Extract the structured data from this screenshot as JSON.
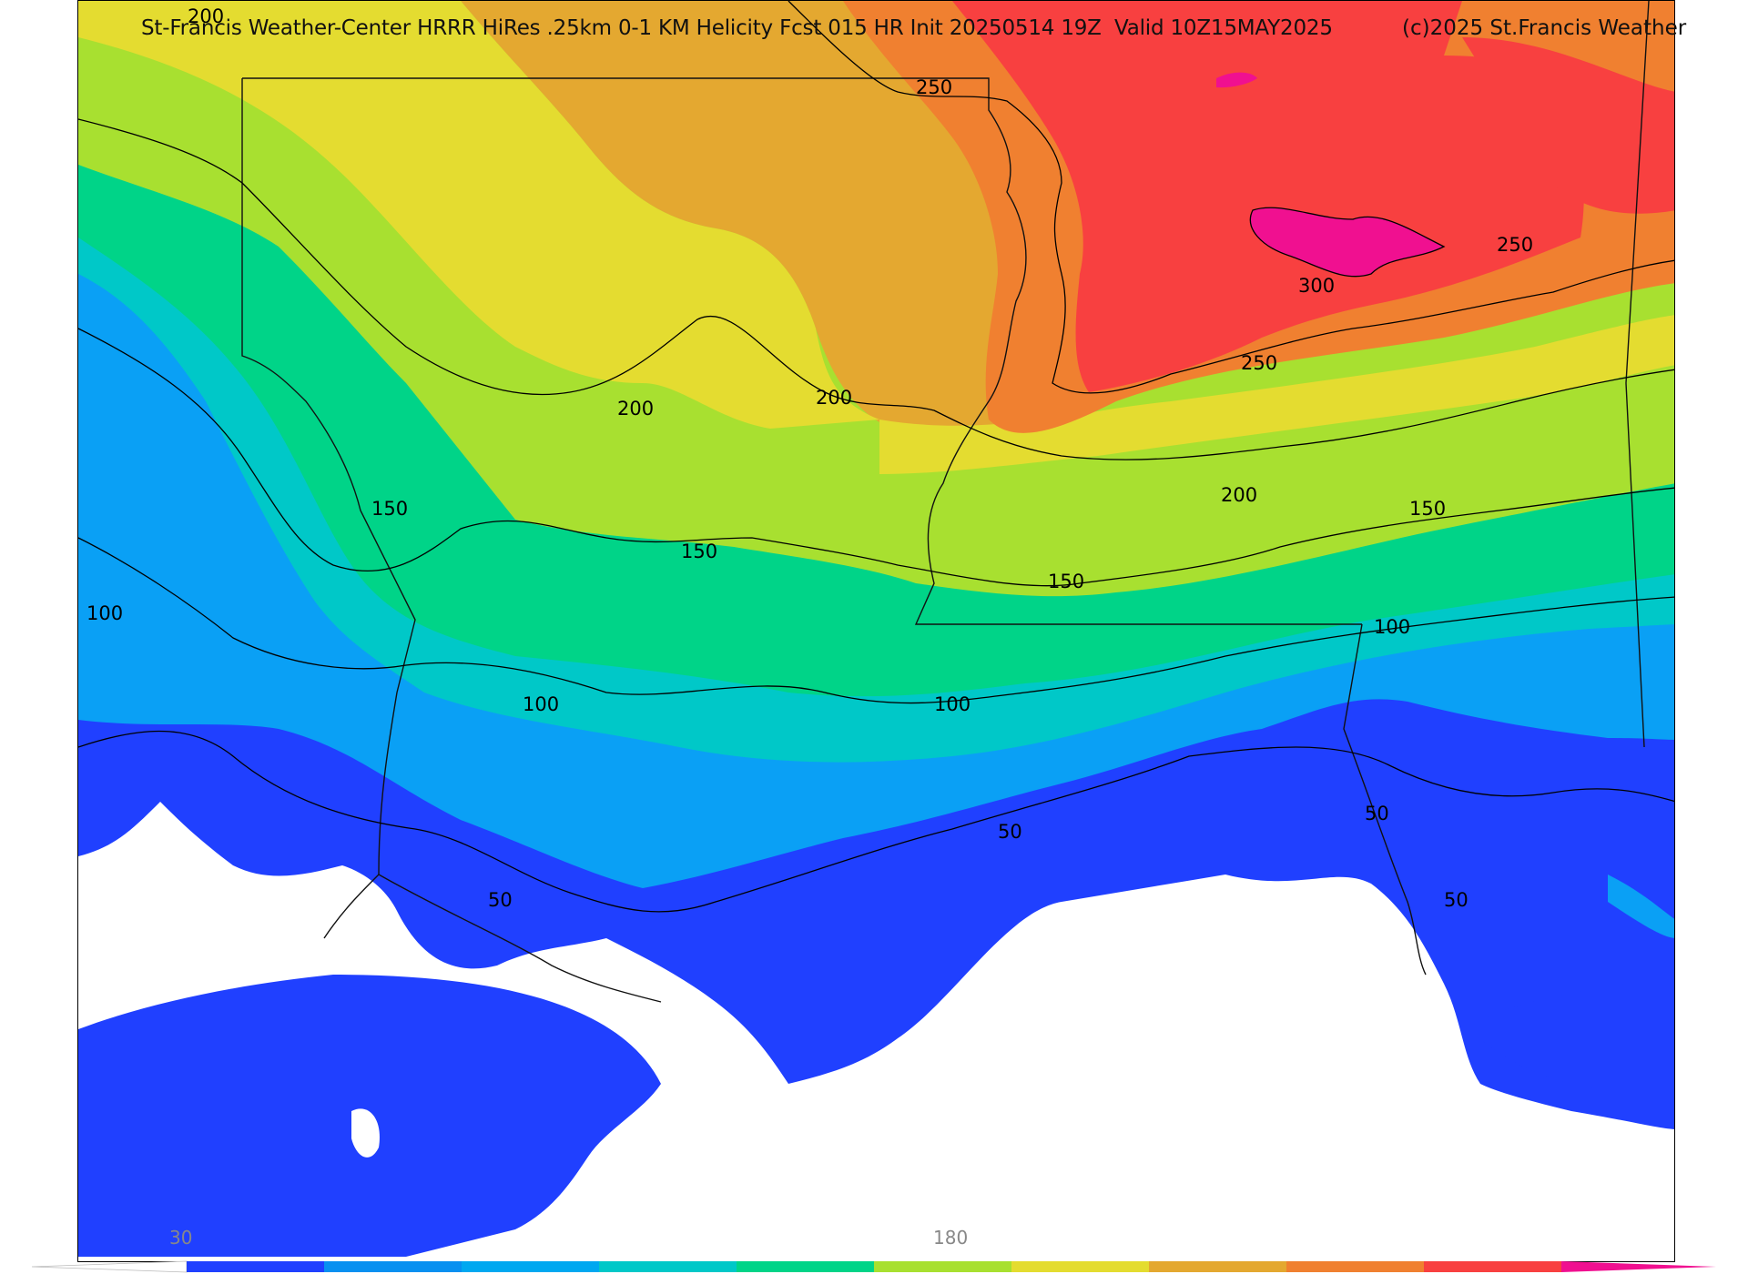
{
  "header": {
    "title": "St-Francis Weather-Center HRRR HiRes .25km 0-1 KM Helicity Fcst 015 HR Init 20250514 19Z  Valid 10Z15MAY2025",
    "copyright": "(c)2025 St.Francis Weather"
  },
  "contour_labels": [
    {
      "id": "c250-north",
      "text": "250"
    },
    {
      "id": "c200-nw",
      "text": "200"
    },
    {
      "id": "c200-mid-a",
      "text": "200"
    },
    {
      "id": "c200-mid-b",
      "text": "200"
    },
    {
      "id": "c200-east",
      "text": "200"
    },
    {
      "id": "c250-east-a",
      "text": "250"
    },
    {
      "id": "c250-east-b",
      "text": "250"
    },
    {
      "id": "c300",
      "text": "300"
    },
    {
      "id": "c150-west",
      "text": "150"
    },
    {
      "id": "c150-mid",
      "text": "150"
    },
    {
      "id": "c150-east-a",
      "text": "150"
    },
    {
      "id": "c150-east-b",
      "text": "150"
    },
    {
      "id": "c100-west",
      "text": "100"
    },
    {
      "id": "c100-mid-a",
      "text": "100"
    },
    {
      "id": "c100-mid-b",
      "text": "100"
    },
    {
      "id": "c100-east",
      "text": "100"
    },
    {
      "id": "c50-west",
      "text": "50"
    },
    {
      "id": "c50-mid",
      "text": "50"
    },
    {
      "id": "c50-east-a",
      "text": "50"
    },
    {
      "id": "c50-east-b",
      "text": "50"
    }
  ],
  "colorbar": {
    "ticks": [
      "30",
      "180"
    ],
    "colors": [
      "#ffffff",
      "#2040ff",
      "#0890f0",
      "#00a8f0",
      "#00c8c8",
      "#00d488",
      "#a8e030",
      "#e4dc30",
      "#e4a830",
      "#f08030",
      "#f84040",
      "#f01090"
    ]
  },
  "palette": {
    "white": "#ffffff",
    "blue": "#2040ff",
    "lightblue": "#0aa0f5",
    "cyan": "#00c8c8",
    "green": "#00d488",
    "lime": "#a8e030",
    "yellow": "#e4dc30",
    "gold": "#e4a830",
    "orange": "#f08030",
    "red": "#f84040",
    "magenta": "#f01090"
  }
}
